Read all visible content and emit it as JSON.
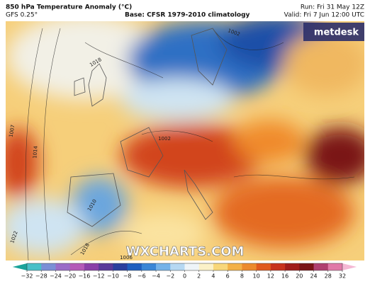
{
  "header": {
    "title": "850 hPa Temperature Anomaly (°C)",
    "model": "GFS 0.25°",
    "base": "Base: CFSR 1979-2010 climatology",
    "run": "Run: Fri 31 May 12Z",
    "valid": "Valid: Fri 7 Jun 12:00 UTC"
  },
  "logo": "metdesk",
  "watermark": "WXCHARTS.COM",
  "isobar_labels": [
    1018,
    1014,
    1007,
    1010,
    1022,
    1018,
    1006,
    1002,
    1002
  ],
  "colorbar": {
    "ticks": [
      {
        "value": -32,
        "label": "−32"
      },
      {
        "value": -28,
        "label": "−28"
      },
      {
        "value": -24,
        "label": "−24"
      },
      {
        "value": -20,
        "label": "−20"
      },
      {
        "value": -16,
        "label": "−16"
      },
      {
        "value": -12,
        "label": "−12"
      },
      {
        "value": -10,
        "label": "−10"
      },
      {
        "value": -8,
        "label": "−8"
      },
      {
        "value": -6,
        "label": "−6"
      },
      {
        "value": -4,
        "label": "−4"
      },
      {
        "value": -2,
        "label": "−2"
      },
      0,
      2,
      4,
      6,
      8,
      10,
      12,
      16,
      20,
      24,
      28,
      32
    ],
    "colors": [
      "#1aa39a",
      "#49c0c8",
      "#7b8fd6",
      "#9a6cc8",
      "#b45ab8",
      "#8a3fa8",
      "#5a3a9a",
      "#2b3f9e",
      "#1f5fbf",
      "#3a86d6",
      "#74b2e8",
      "#b6d8f2",
      "#eef4f8",
      "#fbf1c8",
      "#f8d77a",
      "#f3b146",
      "#ec8a2c",
      "#e05a1e",
      "#c8321c",
      "#a01c1a",
      "#7a1416",
      "#b04070",
      "#e07aa8",
      "#f4b8d4"
    ]
  }
}
